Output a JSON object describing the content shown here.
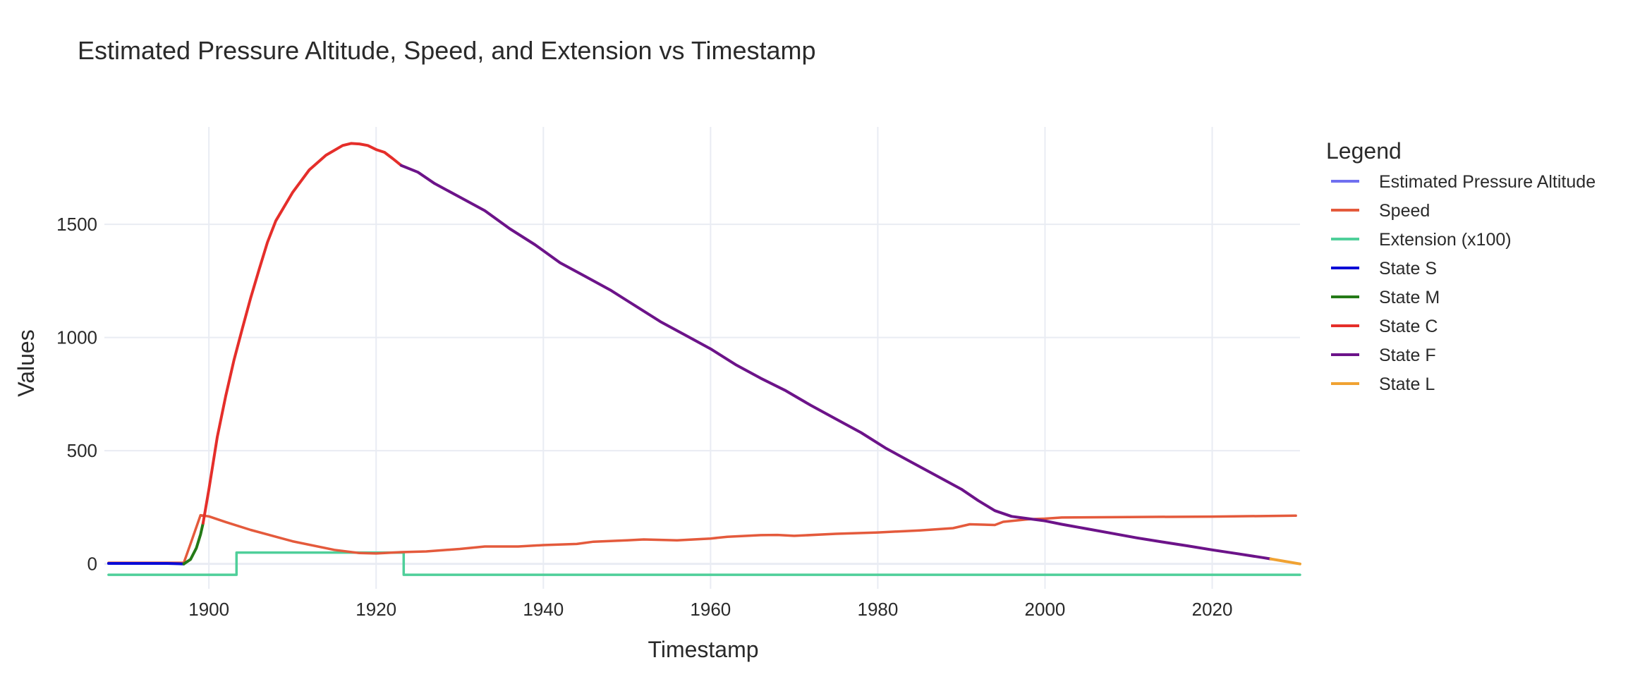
{
  "chart_data": {
    "type": "line",
    "title": "Estimated Pressure Altitude, Speed, and Extension vs Timestamp",
    "xlabel": "Timestamp",
    "ylabel": "Values",
    "xlim": [
      1887.5,
      2030.5
    ],
    "ylim": [
      -110,
      1930
    ],
    "x_ticks": [
      1900,
      1920,
      1940,
      1960,
      1980,
      2000,
      2020
    ],
    "y_ticks": [
      0,
      500,
      1000,
      1500
    ],
    "grid": true,
    "legend": {
      "title": "Legend",
      "placement": "right"
    },
    "series": [
      {
        "name": "Estimated Pressure Altitude",
        "color": "#6f6ff0",
        "points": []
      },
      {
        "name": "Speed",
        "color": "#e45a3c",
        "points": [
          [
            1888,
            5
          ],
          [
            1895,
            5
          ],
          [
            1897,
            5
          ],
          [
            1898,
            110
          ],
          [
            1899,
            215
          ],
          [
            1900,
            210
          ],
          [
            1902,
            185
          ],
          [
            1905,
            150
          ],
          [
            1910,
            100
          ],
          [
            1915,
            62
          ],
          [
            1918,
            48
          ],
          [
            1920,
            46
          ],
          [
            1923,
            52
          ],
          [
            1926,
            55
          ],
          [
            1930,
            66
          ],
          [
            1933,
            77
          ],
          [
            1937,
            77
          ],
          [
            1940,
            83
          ],
          [
            1944,
            88
          ],
          [
            1946,
            98
          ],
          [
            1950,
            104
          ],
          [
            1952,
            108
          ],
          [
            1956,
            104
          ],
          [
            1960,
            112
          ],
          [
            1962,
            120
          ],
          [
            1966,
            127
          ],
          [
            1968,
            128
          ],
          [
            1970,
            124
          ],
          [
            1975,
            133
          ],
          [
            1980,
            139
          ],
          [
            1985,
            148
          ],
          [
            1989,
            158
          ],
          [
            1991,
            175
          ],
          [
            1994,
            172
          ],
          [
            1995,
            186
          ],
          [
            1998,
            197
          ],
          [
            2000,
            200
          ],
          [
            2002,
            205
          ],
          [
            2010,
            207
          ],
          [
            2020,
            209
          ],
          [
            2030,
            213
          ]
        ]
      },
      {
        "name": "Extension (x100)",
        "color": "#4fcf9a",
        "points": [
          [
            1888,
            -48
          ],
          [
            1903.3,
            -48
          ],
          [
            1903.3,
            50
          ],
          [
            1923.3,
            50
          ],
          [
            1923.3,
            -48
          ],
          [
            2030.5,
            -48
          ]
        ]
      },
      {
        "name": "State S",
        "color": "#0b0bd6",
        "points": [
          [
            1888,
            2
          ],
          [
            1895,
            2
          ],
          [
            1897,
            0
          ]
        ]
      },
      {
        "name": "State M",
        "color": "#247a17",
        "points": [
          [
            1897,
            0
          ],
          [
            1897.8,
            20
          ],
          [
            1898.5,
            70
          ],
          [
            1899,
            130
          ],
          [
            1899.3,
            180
          ]
        ]
      },
      {
        "name": "State C",
        "color": "#e52e2a",
        "points": [
          [
            1899.3,
            180
          ],
          [
            1900,
            330
          ],
          [
            1901,
            560
          ],
          [
            1902,
            740
          ],
          [
            1903,
            900
          ],
          [
            1904,
            1040
          ],
          [
            1905,
            1175
          ],
          [
            1906,
            1300
          ],
          [
            1907,
            1420
          ],
          [
            1908,
            1515
          ],
          [
            1910,
            1640
          ],
          [
            1912,
            1740
          ],
          [
            1914,
            1805
          ],
          [
            1916,
            1848
          ],
          [
            1917,
            1857
          ],
          [
            1918,
            1855
          ],
          [
            1919,
            1848
          ],
          [
            1920,
            1830
          ],
          [
            1921,
            1818
          ],
          [
            1922,
            1790
          ],
          [
            1923,
            1760
          ]
        ]
      },
      {
        "name": "State F",
        "color": "#6c1389",
        "points": [
          [
            1923,
            1760
          ],
          [
            1925,
            1730
          ],
          [
            1927,
            1680
          ],
          [
            1930,
            1620
          ],
          [
            1933,
            1560
          ],
          [
            1936,
            1480
          ],
          [
            1939,
            1410
          ],
          [
            1942,
            1330
          ],
          [
            1945,
            1270
          ],
          [
            1948,
            1210
          ],
          [
            1951,
            1140
          ],
          [
            1954,
            1070
          ],
          [
            1957,
            1010
          ],
          [
            1960,
            950
          ],
          [
            1963,
            880
          ],
          [
            1966,
            820
          ],
          [
            1969,
            765
          ],
          [
            1972,
            700
          ],
          [
            1975,
            640
          ],
          [
            1978,
            580
          ],
          [
            1981,
            510
          ],
          [
            1984,
            450
          ],
          [
            1987,
            390
          ],
          [
            1990,
            330
          ],
          [
            1992,
            280
          ],
          [
            1994,
            235
          ],
          [
            1996,
            210
          ],
          [
            1998,
            200
          ],
          [
            2000,
            190
          ],
          [
            2002,
            175
          ],
          [
            2005,
            155
          ],
          [
            2008,
            135
          ],
          [
            2011,
            115
          ],
          [
            2014,
            97
          ],
          [
            2017,
            80
          ],
          [
            2020,
            62
          ],
          [
            2023,
            45
          ],
          [
            2026,
            28
          ],
          [
            2027,
            22
          ]
        ]
      },
      {
        "name": "State L",
        "color": "#f0a232",
        "points": [
          [
            2027,
            22
          ],
          [
            2030.5,
            0
          ]
        ]
      }
    ]
  }
}
